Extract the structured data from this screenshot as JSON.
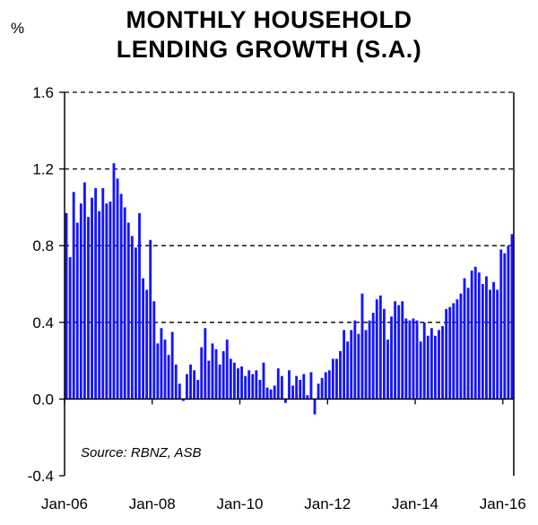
{
  "chart_data": {
    "type": "bar",
    "title_lines": [
      "MONTHLY HOUSEHOLD",
      "LENDING GROWTH (S.A.)"
    ],
    "unit_label": "%",
    "source": "Source:  RBNZ, ASB",
    "ylim": [
      -0.4,
      1.6
    ],
    "yticks": [
      -0.4,
      0.0,
      0.4,
      0.8,
      1.2,
      1.6
    ],
    "ytick_labels": [
      "-0.4",
      "0.0",
      "0.4",
      "0.8",
      "1.2",
      "1.6"
    ],
    "dashed_gridlines": [
      0.4,
      0.8,
      1.2,
      1.6
    ],
    "xtick_labels": [
      "Jan-06",
      "Jan-08",
      "Jan-10",
      "Jan-12",
      "Jan-14",
      "Jan-16"
    ],
    "xtick_positions": [
      0,
      24,
      48,
      72,
      96,
      120
    ],
    "start": "Jan-06",
    "bar_color": "#1515ff",
    "values": [
      0.97,
      0.74,
      1.08,
      0.92,
      1.02,
      1.13,
      0.95,
      1.05,
      1.1,
      0.98,
      1.1,
      1.02,
      1.03,
      1.23,
      1.15,
      1.07,
      1.0,
      0.92,
      0.85,
      0.79,
      0.97,
      0.63,
      0.57,
      0.83,
      0.51,
      0.29,
      0.37,
      0.31,
      0.23,
      0.35,
      0.18,
      0.08,
      -0.01,
      0.13,
      0.18,
      0.15,
      0.1,
      0.27,
      0.37,
      0.2,
      0.29,
      0.26,
      0.18,
      0.25,
      0.31,
      0.21,
      0.19,
      0.16,
      0.17,
      0.12,
      0.15,
      0.13,
      0.15,
      0.1,
      0.19,
      0.06,
      0.05,
      0.07,
      0.16,
      0.12,
      -0.02,
      0.15,
      0.07,
      0.12,
      0.1,
      0.13,
      0.02,
      0.14,
      -0.08,
      0.08,
      0.11,
      0.14,
      0.15,
      0.21,
      0.21,
      0.25,
      0.36,
      0.3,
      0.36,
      0.41,
      0.34,
      0.55,
      0.36,
      0.41,
      0.45,
      0.52,
      0.54,
      0.47,
      0.31,
      0.43,
      0.51,
      0.49,
      0.51,
      0.42,
      0.41,
      0.42,
      0.41,
      0.3,
      0.4,
      0.33,
      0.37,
      0.33,
      0.36,
      0.38,
      0.47,
      0.48,
      0.5,
      0.52,
      0.55,
      0.63,
      0.58,
      0.67,
      0.69,
      0.66,
      0.6,
      0.64,
      0.57,
      0.61,
      0.57,
      0.78,
      0.76,
      0.8,
      0.86
    ]
  }
}
